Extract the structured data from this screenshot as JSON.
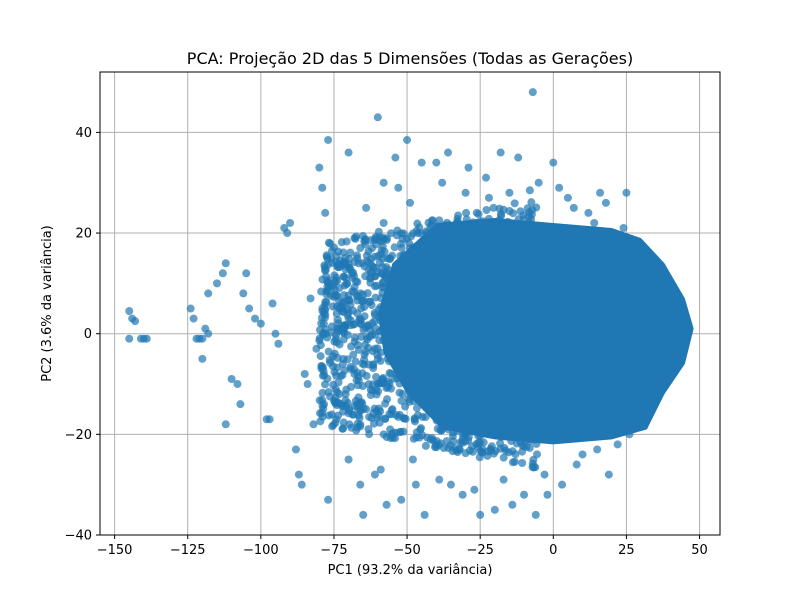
{
  "chart_data": {
    "type": "scatter",
    "title": "PCA: Projeção 2D das 5 Dimensões (Todas as Gerações)",
    "xlabel": "PC1 (93.2% da variância)",
    "ylabel": "PC2 (3.6% da variância)",
    "xlim": [
      -155,
      57
    ],
    "ylim": [
      -40,
      52
    ],
    "xticks": [
      -150,
      -125,
      -100,
      -75,
      -50,
      -25,
      0,
      25,
      50
    ],
    "xtick_labels": [
      "−150",
      "−125",
      "−100",
      "−75",
      "−50",
      "−25",
      "0",
      "25",
      "50"
    ],
    "yticks": [
      -40,
      -20,
      0,
      20,
      40
    ],
    "ytick_labels": [
      "−40",
      "−20",
      "0",
      "20",
      "40"
    ],
    "grid": true,
    "marker_color": "#1f77b4",
    "marker_alpha": 0.7,
    "dense_region": {
      "description_points": [
        [
          -20,
          22
        ],
        [
          30,
          20
        ],
        [
          48,
          1
        ],
        [
          30,
          -20
        ],
        [
          -20,
          -20
        ],
        [
          -40,
          0
        ]
      ]
    },
    "points": [
      [
        -145,
        4.5
      ],
      [
        -144,
        3
      ],
      [
        -143,
        2.5
      ],
      [
        -141,
        -1
      ],
      [
        -140,
        -1
      ],
      [
        -139,
        -1
      ],
      [
        -145,
        -1
      ],
      [
        -124,
        5
      ],
      [
        -123,
        3
      ],
      [
        -122,
        -1
      ],
      [
        -121,
        -1
      ],
      [
        -120,
        -1
      ],
      [
        -120,
        -5
      ],
      [
        -119,
        1
      ],
      [
        -118,
        0
      ],
      [
        -112,
        -18
      ],
      [
        -112,
        14
      ],
      [
        -115,
        10
      ],
      [
        -118,
        8
      ],
      [
        -113,
        12
      ],
      [
        -110,
        -9
      ],
      [
        -108,
        -10
      ],
      [
        -107,
        -14
      ],
      [
        -105,
        12
      ],
      [
        -106,
        8
      ],
      [
        -104,
        5
      ],
      [
        -102,
        3
      ],
      [
        -100,
        2
      ],
      [
        -98,
        -17
      ],
      [
        -97,
        -17
      ],
      [
        -96,
        6
      ],
      [
        -95,
        0
      ],
      [
        -94,
        -2
      ],
      [
        -92,
        21
      ],
      [
        -91,
        20
      ],
      [
        -90,
        22
      ],
      [
        -88,
        -23
      ],
      [
        -87,
        -28
      ],
      [
        -86,
        -30
      ],
      [
        -85,
        -8
      ],
      [
        -84,
        -10
      ],
      [
        -83,
        7
      ],
      [
        -82,
        -18
      ],
      [
        -81,
        -3
      ],
      [
        -80,
        33
      ],
      [
        -79,
        29
      ],
      [
        -78,
        24
      ],
      [
        -77,
        38.5
      ],
      [
        -77,
        -33
      ],
      [
        -76,
        15
      ],
      [
        -75,
        10
      ],
      [
        -74,
        4
      ],
      [
        -72,
        5
      ],
      [
        -71,
        -12
      ],
      [
        -70,
        -25
      ],
      [
        -70,
        36
      ],
      [
        -68,
        19
      ],
      [
        -66,
        -30
      ],
      [
        -65,
        -36
      ],
      [
        -64,
        25
      ],
      [
        -62,
        17
      ],
      [
        -61,
        -28
      ],
      [
        -60,
        43
      ],
      [
        -59,
        -27
      ],
      [
        -58,
        30
      ],
      [
        -57,
        -34
      ],
      [
        -55,
        -15
      ],
      [
        -54,
        35
      ],
      [
        -53,
        29
      ],
      [
        -52,
        -33
      ],
      [
        -50,
        38.5
      ],
      [
        -49,
        26
      ],
      [
        -48,
        -25
      ],
      [
        -47,
        -30
      ],
      [
        -45,
        34
      ],
      [
        -44,
        -36
      ],
      [
        -42,
        -21
      ],
      [
        -40,
        34
      ],
      [
        -39,
        -29
      ],
      [
        -38,
        30
      ],
      [
        -36,
        36
      ],
      [
        -35,
        -30
      ],
      [
        -33,
        22
      ],
      [
        -31,
        -32
      ],
      [
        -30,
        28
      ],
      [
        -29,
        33
      ],
      [
        -27,
        -31
      ],
      [
        -25,
        -36
      ],
      [
        -23,
        31
      ],
      [
        -22,
        27
      ],
      [
        -20,
        -35
      ],
      [
        -18,
        36
      ],
      [
        -17,
        -29
      ],
      [
        -15,
        28
      ],
      [
        -14,
        -34
      ],
      [
        -12,
        35
      ],
      [
        -10,
        -32
      ],
      [
        -8,
        28.5
      ],
      [
        -7,
        48
      ],
      [
        -6,
        -36
      ],
      [
        -5,
        30
      ],
      [
        -3,
        -28
      ],
      [
        -2,
        -32
      ],
      [
        0,
        34
      ],
      [
        2,
        29
      ],
      [
        3,
        -30
      ],
      [
        5,
        27
      ],
      [
        7,
        25
      ],
      [
        8,
        -26
      ],
      [
        10,
        -24
      ],
      [
        12,
        24
      ],
      [
        14,
        22
      ],
      [
        15,
        -23
      ],
      [
        16,
        28
      ],
      [
        18,
        26
      ],
      [
        19,
        -28
      ],
      [
        20,
        20
      ],
      [
        22,
        -22
      ],
      [
        24,
        21
      ],
      [
        25,
        28
      ],
      [
        26,
        -20
      ],
      [
        28,
        18
      ],
      [
        -58,
        22
      ],
      [
        -62,
        12
      ],
      [
        -66,
        8
      ],
      [
        -70,
        3
      ],
      [
        -68,
        -8
      ],
      [
        -64,
        -15
      ],
      [
        -58,
        -20
      ],
      [
        -52,
        10
      ],
      [
        -56,
        2
      ],
      [
        -60,
        -5
      ],
      [
        -48,
        15
      ],
      [
        -44,
        -12
      ],
      [
        -46,
        5
      ],
      [
        -42,
        20
      ],
      [
        -38,
        -18
      ],
      [
        -36,
        12
      ],
      [
        -34,
        -6
      ],
      [
        -32,
        18
      ],
      [
        -30,
        -14
      ]
    ]
  }
}
